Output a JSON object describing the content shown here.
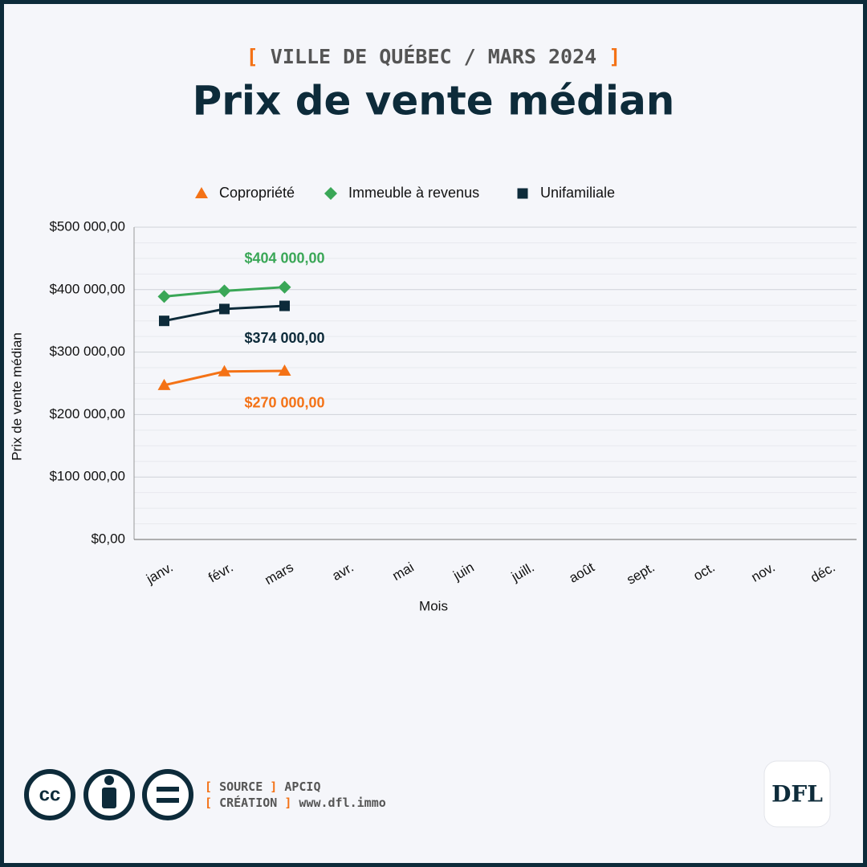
{
  "header": {
    "bracket_open": "[",
    "bracket_close": "]",
    "kicker": "VILLE DE QUÉBEC / MARS 2024"
  },
  "chart_data": {
    "type": "line",
    "title": "Prix de vente médian",
    "categories": [
      "janv.",
      "févr.",
      "mars",
      "avr.",
      "mai",
      "juin",
      "juill.",
      "août",
      "sept.",
      "oct.",
      "nov.",
      "déc."
    ],
    "x_label": "Mois",
    "y_label": "Prix de vente médian",
    "ylim": [
      0,
      500000
    ],
    "yticks": [
      {
        "value": 0,
        "label": "$0,00"
      },
      {
        "value": 100000,
        "label": "$100 000,00"
      },
      {
        "value": 200000,
        "label": "$200 000,00"
      },
      {
        "value": 300000,
        "label": "$300 000,00"
      },
      {
        "value": 400000,
        "label": "$400 000,00"
      },
      {
        "value": 500000,
        "label": "$500 000,00"
      }
    ],
    "minor_yticks": [
      25000,
      50000,
      75000,
      125000,
      150000,
      175000,
      225000,
      250000,
      275000,
      325000,
      350000,
      375000,
      425000,
      450000,
      475000
    ],
    "grid": true,
    "legend": "top",
    "series": [
      {
        "name": "Copropriété",
        "color": "#f47216",
        "marker": "triangle",
        "values": [
          247000,
          269000,
          270000,
          null,
          null,
          null,
          null,
          null,
          null,
          null,
          null,
          null
        ],
        "value_labels": [
          null,
          null,
          "$270 000,00",
          null,
          null,
          null,
          null,
          null,
          null,
          null,
          null,
          null
        ]
      },
      {
        "name": "Immeuble à revenus",
        "color": "#3aa757",
        "marker": "diamond",
        "values": [
          389000,
          398000,
          404000,
          null,
          null,
          null,
          null,
          null,
          null,
          null,
          null,
          null
        ],
        "value_labels": [
          null,
          null,
          "$404 000,00",
          null,
          null,
          null,
          null,
          null,
          null,
          null,
          null,
          null
        ]
      },
      {
        "name": "Unifamiliale",
        "color": "#0d2b3a",
        "marker": "square",
        "values": [
          350000,
          369000,
          374000,
          null,
          null,
          null,
          null,
          null,
          null,
          null,
          null,
          null
        ],
        "value_labels": [
          null,
          null,
          "$374 000,00",
          null,
          null,
          null,
          null,
          null,
          null,
          null,
          null,
          null
        ]
      }
    ]
  },
  "footer": {
    "license": "cc",
    "credits": [
      {
        "label": "SOURCE",
        "value": "APCIQ"
      },
      {
        "label": "CRÉATION",
        "value": "www.dfl.immo"
      }
    ],
    "logo": "DFL"
  }
}
